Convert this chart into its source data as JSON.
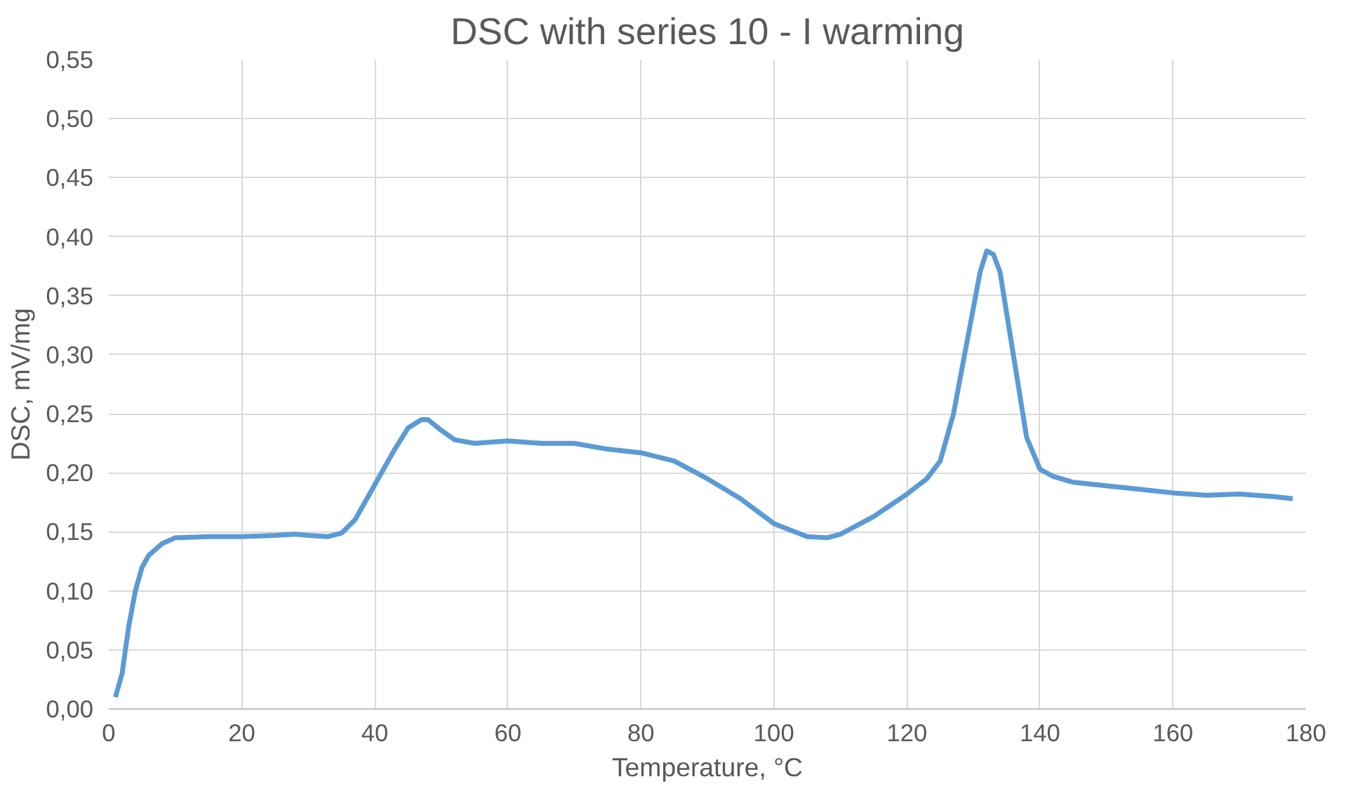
{
  "chart_data": {
    "type": "line",
    "title": "DSC with series 10 - I warming",
    "xlabel": "Temperature, °C",
    "ylabel": "DSC, mV/mg",
    "x": [
      1,
      2,
      3,
      4,
      5,
      6,
      8,
      10,
      15,
      20,
      25,
      28,
      30,
      33,
      35,
      37,
      39,
      41,
      43,
      45,
      47,
      48,
      50,
      52,
      55,
      60,
      65,
      70,
      75,
      80,
      85,
      90,
      95,
      100,
      105,
      108,
      110,
      115,
      120,
      123,
      125,
      127,
      129,
      131,
      132,
      133,
      134,
      136,
      138,
      140,
      142,
      145,
      150,
      155,
      160,
      165,
      170,
      175,
      178
    ],
    "series": [
      {
        "color": "#5b9bd5",
        "values": [
          0.01,
          0.03,
          0.07,
          0.1,
          0.12,
          0.13,
          0.14,
          0.145,
          0.146,
          0.146,
          0.147,
          0.148,
          0.147,
          0.146,
          0.149,
          0.16,
          0.18,
          0.2,
          0.22,
          0.238,
          0.245,
          0.245,
          0.236,
          0.228,
          0.225,
          0.227,
          0.225,
          0.225,
          0.22,
          0.217,
          0.21,
          0.195,
          0.178,
          0.157,
          0.146,
          0.145,
          0.148,
          0.163,
          0.182,
          0.195,
          0.21,
          0.25,
          0.31,
          0.37,
          0.388,
          0.385,
          0.37,
          0.3,
          0.23,
          0.203,
          0.197,
          0.192,
          0.189,
          0.186,
          0.183,
          0.181,
          0.182,
          0.18,
          0.178
        ]
      }
    ],
    "xlim": [
      0,
      180
    ],
    "xticks": [
      0,
      20,
      40,
      60,
      80,
      100,
      120,
      140,
      160,
      180
    ],
    "ylim": [
      0,
      0.55
    ],
    "yticks": [
      {
        "value": 0,
        "label": "0,00"
      },
      {
        "value": 0.05,
        "label": "0,05"
      },
      {
        "value": 0.1,
        "label": "0,10"
      },
      {
        "value": 0.15,
        "label": "0,15"
      },
      {
        "value": 0.2,
        "label": "0,20"
      },
      {
        "value": 0.25,
        "label": "0,25"
      },
      {
        "value": 0.3,
        "label": "0,30"
      },
      {
        "value": 0.35,
        "label": "0,35"
      },
      {
        "value": 0.4,
        "label": "0,40"
      },
      {
        "value": 0.45,
        "label": "0,45"
      },
      {
        "value": 0.5,
        "label": "0,50"
      },
      {
        "value": 0.55,
        "label": "0,55"
      }
    ],
    "grid": true,
    "marker": "none",
    "line_style": "solid"
  }
}
